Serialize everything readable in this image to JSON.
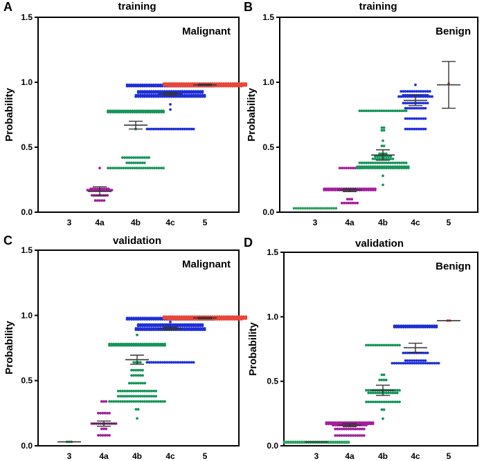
{
  "colors": {
    "3": "#2ca25f",
    "4a": "#a31f9b",
    "4b": "#17955a",
    "4c": "#1f2fd6",
    "5": "#e8473a",
    "axis": "#000000",
    "errorbar": "#333333"
  },
  "chart_data": [
    {
      "panel": "A",
      "type": "scatter",
      "title": "training",
      "label": "Malignant",
      "ylabel": "Probability",
      "categories": [
        "3",
        "4a",
        "4b",
        "4c",
        "5"
      ],
      "yticks": [
        0.0,
        0.5,
        1.0,
        1.5
      ],
      "ylim": [
        0,
        1.5
      ],
      "means": [
        null,
        0.16,
        0.67,
        0.91,
        0.98
      ],
      "sem": [
        null,
        0.035,
        0.03,
        0.01,
        0.005
      ],
      "points": [
        [],
        [
          {
            "y": 0.34,
            "n": 1
          },
          {
            "y": 0.18,
            "n": 9
          },
          {
            "y": 0.17,
            "n": 12
          },
          {
            "y": 0.13,
            "n": 8
          },
          {
            "y": 0.09,
            "n": 5
          }
        ],
        [
          {
            "y": 0.89,
            "n": 1
          },
          {
            "y": 0.78,
            "n": 26
          },
          {
            "y": 0.77,
            "n": 26
          },
          {
            "y": 0.64,
            "n": 1
          },
          {
            "y": 0.42,
            "n": 13
          },
          {
            "y": 0.38,
            "n": 9
          },
          {
            "y": 0.34,
            "n": 26
          }
        ],
        [
          {
            "y": 0.98,
            "n": 40
          },
          {
            "y": 0.97,
            "n": 40
          },
          {
            "y": 0.93,
            "n": 30
          },
          {
            "y": 0.92,
            "n": 30
          },
          {
            "y": 0.9,
            "n": 32
          },
          {
            "y": 0.89,
            "n": 32
          },
          {
            "y": 0.83,
            "n": 1
          },
          {
            "y": 0.79,
            "n": 1
          },
          {
            "y": 0.64,
            "n": 22
          }
        ],
        [
          {
            "y": 0.99,
            "n": 38
          },
          {
            "y": 0.985,
            "n": 38
          },
          {
            "y": 0.98,
            "n": 38
          },
          {
            "y": 0.975,
            "n": 38
          },
          {
            "y": 0.97,
            "n": 34
          }
        ]
      ]
    },
    {
      "panel": "B",
      "type": "scatter",
      "title": "training",
      "label": "Benign",
      "ylabel": "Probability",
      "categories": [
        "3",
        "4a",
        "4b",
        "4c",
        "5"
      ],
      "yticks": [
        0.0,
        0.5,
        1.0,
        1.5
      ],
      "ylim": [
        0,
        1.5
      ],
      "means": [
        null,
        0.17,
        0.44,
        0.86,
        0.98
      ],
      "sem": [
        null,
        0.012,
        0.04,
        0.04,
        0.18
      ],
      "points": [
        [
          {
            "y": 0.03,
            "n": 20
          }
        ],
        [
          {
            "y": 0.34,
            "n": 10
          },
          {
            "y": 0.18,
            "n": 24
          },
          {
            "y": 0.17,
            "n": 24
          },
          {
            "y": 0.1,
            "n": 3
          },
          {
            "y": 0.07,
            "n": 8
          }
        ],
        [
          {
            "y": 0.78,
            "n": 22
          },
          {
            "y": 0.65,
            "n": 2
          },
          {
            "y": 0.63,
            "n": 2
          },
          {
            "y": 0.55,
            "n": 1
          },
          {
            "y": 0.51,
            "n": 2
          },
          {
            "y": 0.45,
            "n": 4
          },
          {
            "y": 0.43,
            "n": 8
          },
          {
            "y": 0.41,
            "n": 10
          },
          {
            "y": 0.38,
            "n": 22
          },
          {
            "y": 0.35,
            "n": 24
          },
          {
            "y": 0.34,
            "n": 24
          },
          {
            "y": 0.28,
            "n": 1
          },
          {
            "y": 0.21,
            "n": 1
          }
        ],
        [
          {
            "y": 0.98,
            "n": 1
          },
          {
            "y": 0.93,
            "n": 14
          },
          {
            "y": 0.9,
            "n": 12
          },
          {
            "y": 0.89,
            "n": 16
          },
          {
            "y": 0.84,
            "n": 12
          },
          {
            "y": 0.8,
            "n": 10
          },
          {
            "y": 0.72,
            "n": 10
          },
          {
            "y": 0.64,
            "n": 10
          }
        ],
        [
          {
            "y": 0.99,
            "n": 1
          }
        ]
      ]
    },
    {
      "panel": "C",
      "type": "scatter",
      "title": "validation",
      "label": "Malignant",
      "ylabel": "Probability",
      "categories": [
        "3",
        "4a",
        "4b",
        "4c",
        "5"
      ],
      "yticks": [
        0.0,
        0.5,
        1.0,
        1.5
      ],
      "ylim": [
        0,
        1.5
      ],
      "means": [
        0.03,
        0.17,
        0.66,
        0.9,
        0.98
      ],
      "sem": [
        0.0,
        0.02,
        0.035,
        0.01,
        0.005
      ],
      "points": [
        [
          {
            "y": 0.03,
            "n": 3
          }
        ],
        [
          {
            "y": 0.34,
            "n": 3
          },
          {
            "y": 0.25,
            "n": 6
          },
          {
            "y": 0.17,
            "n": 12
          },
          {
            "y": 0.13,
            "n": 3
          },
          {
            "y": 0.08,
            "n": 6
          }
        ],
        [
          {
            "y": 0.9,
            "n": 2
          },
          {
            "y": 0.85,
            "n": 1
          },
          {
            "y": 0.78,
            "n": 26
          },
          {
            "y": 0.77,
            "n": 26
          },
          {
            "y": 0.64,
            "n": 4
          },
          {
            "y": 0.58,
            "n": 6
          },
          {
            "y": 0.54,
            "n": 6
          },
          {
            "y": 0.48,
            "n": 8
          },
          {
            "y": 0.42,
            "n": 18
          },
          {
            "y": 0.38,
            "n": 18
          },
          {
            "y": 0.34,
            "n": 26
          },
          {
            "y": 0.28,
            "n": 2
          },
          {
            "y": 0.21,
            "n": 1
          }
        ],
        [
          {
            "y": 0.98,
            "n": 40
          },
          {
            "y": 0.97,
            "n": 40
          },
          {
            "y": 0.95,
            "n": 1
          },
          {
            "y": 0.93,
            "n": 30
          },
          {
            "y": 0.92,
            "n": 30
          },
          {
            "y": 0.9,
            "n": 32
          },
          {
            "y": 0.89,
            "n": 32
          },
          {
            "y": 0.64,
            "n": 22
          }
        ],
        [
          {
            "y": 0.99,
            "n": 38
          },
          {
            "y": 0.985,
            "n": 38
          },
          {
            "y": 0.98,
            "n": 38
          },
          {
            "y": 0.975,
            "n": 38
          },
          {
            "y": 0.97,
            "n": 34
          }
        ]
      ]
    },
    {
      "panel": "D",
      "type": "scatter",
      "title": "validation",
      "label": "Benign",
      "ylabel": "Probability",
      "categories": [
        "3",
        "4a",
        "4b",
        "4c",
        "5"
      ],
      "yticks": [
        0.0,
        0.5,
        1.0,
        1.5
      ],
      "ylim": [
        0,
        1.5
      ],
      "means": [
        0.03,
        0.16,
        0.43,
        0.76,
        0.97
      ],
      "sem": [
        0.0,
        0.012,
        0.04,
        0.035,
        0.0
      ],
      "points": [
        [
          {
            "y": 0.03,
            "n": 30
          },
          {
            "y": 0.025,
            "n": 30
          }
        ],
        [
          {
            "y": 0.18,
            "n": 22
          },
          {
            "y": 0.17,
            "n": 22
          },
          {
            "y": 0.16,
            "n": 16
          },
          {
            "y": 0.13,
            "n": 14
          },
          {
            "y": 0.08,
            "n": 14
          }
        ],
        [
          {
            "y": 0.78,
            "n": 16
          },
          {
            "y": 0.55,
            "n": 2
          },
          {
            "y": 0.51,
            "n": 4
          },
          {
            "y": 0.43,
            "n": 16
          },
          {
            "y": 0.41,
            "n": 14
          },
          {
            "y": 0.34,
            "n": 16
          },
          {
            "y": 0.28,
            "n": 2
          },
          {
            "y": 0.21,
            "n": 1
          }
        ],
        [
          {
            "y": 0.93,
            "n": 20
          },
          {
            "y": 0.92,
            "n": 20
          },
          {
            "y": 0.72,
            "n": 12
          },
          {
            "y": 0.66,
            "n": 10
          },
          {
            "y": 0.64,
            "n": 22
          }
        ],
        [
          {
            "y": 0.97,
            "n": 2
          }
        ]
      ]
    }
  ]
}
